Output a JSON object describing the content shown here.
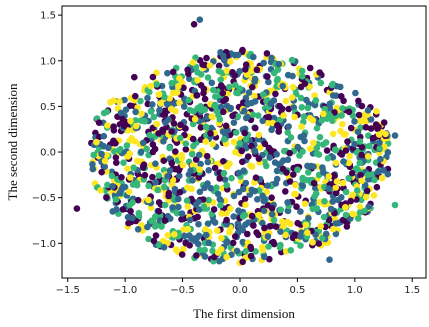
{
  "chart_data": {
    "type": "scatter",
    "xlabel": "The first dimension",
    "ylabel": "The second dimension",
    "xlim": [
      -1.55,
      1.62
    ],
    "ylim": [
      -1.38,
      1.6
    ],
    "xticks": [
      -1.5,
      -1.0,
      -0.5,
      0.0,
      0.5,
      1.0,
      1.5
    ],
    "xtick_labels": [
      "−1.5",
      "−1.0",
      "−0.5",
      "0.0",
      "0.5",
      "1.0",
      "1.5"
    ],
    "yticks": [
      -1.0,
      -0.5,
      0.0,
      0.5,
      1.0,
      1.5
    ],
    "ytick_labels": [
      "−1.0",
      "−0.5",
      "0.0",
      "0.5",
      "1.0",
      "1.5"
    ],
    "grid": false,
    "colormap": "viridis",
    "category_colors": [
      "#440154",
      "#31688e",
      "#35b779",
      "#fde725"
    ],
    "point_count": 1600,
    "x_range": [
      -1.45,
      1.38
    ],
    "y_range": [
      -1.25,
      1.47
    ],
    "outliers": [
      {
        "x": -1.42,
        "y": -0.62,
        "category": 0
      },
      {
        "x": -0.35,
        "y": 1.45,
        "category": 1
      },
      {
        "x": -0.4,
        "y": 1.4,
        "category": 0
      },
      {
        "x": 1.35,
        "y": 0.18,
        "category": 1
      },
      {
        "x": 1.35,
        "y": -0.58,
        "category": 2
      },
      {
        "x": 0.78,
        "y": -1.18,
        "category": 1
      },
      {
        "x": -0.92,
        "y": 0.82,
        "category": 0
      },
      {
        "x": -1.05,
        "y": 0.55,
        "category": 3
      },
      {
        "x": 1.25,
        "y": -0.2,
        "category": 1
      }
    ]
  }
}
